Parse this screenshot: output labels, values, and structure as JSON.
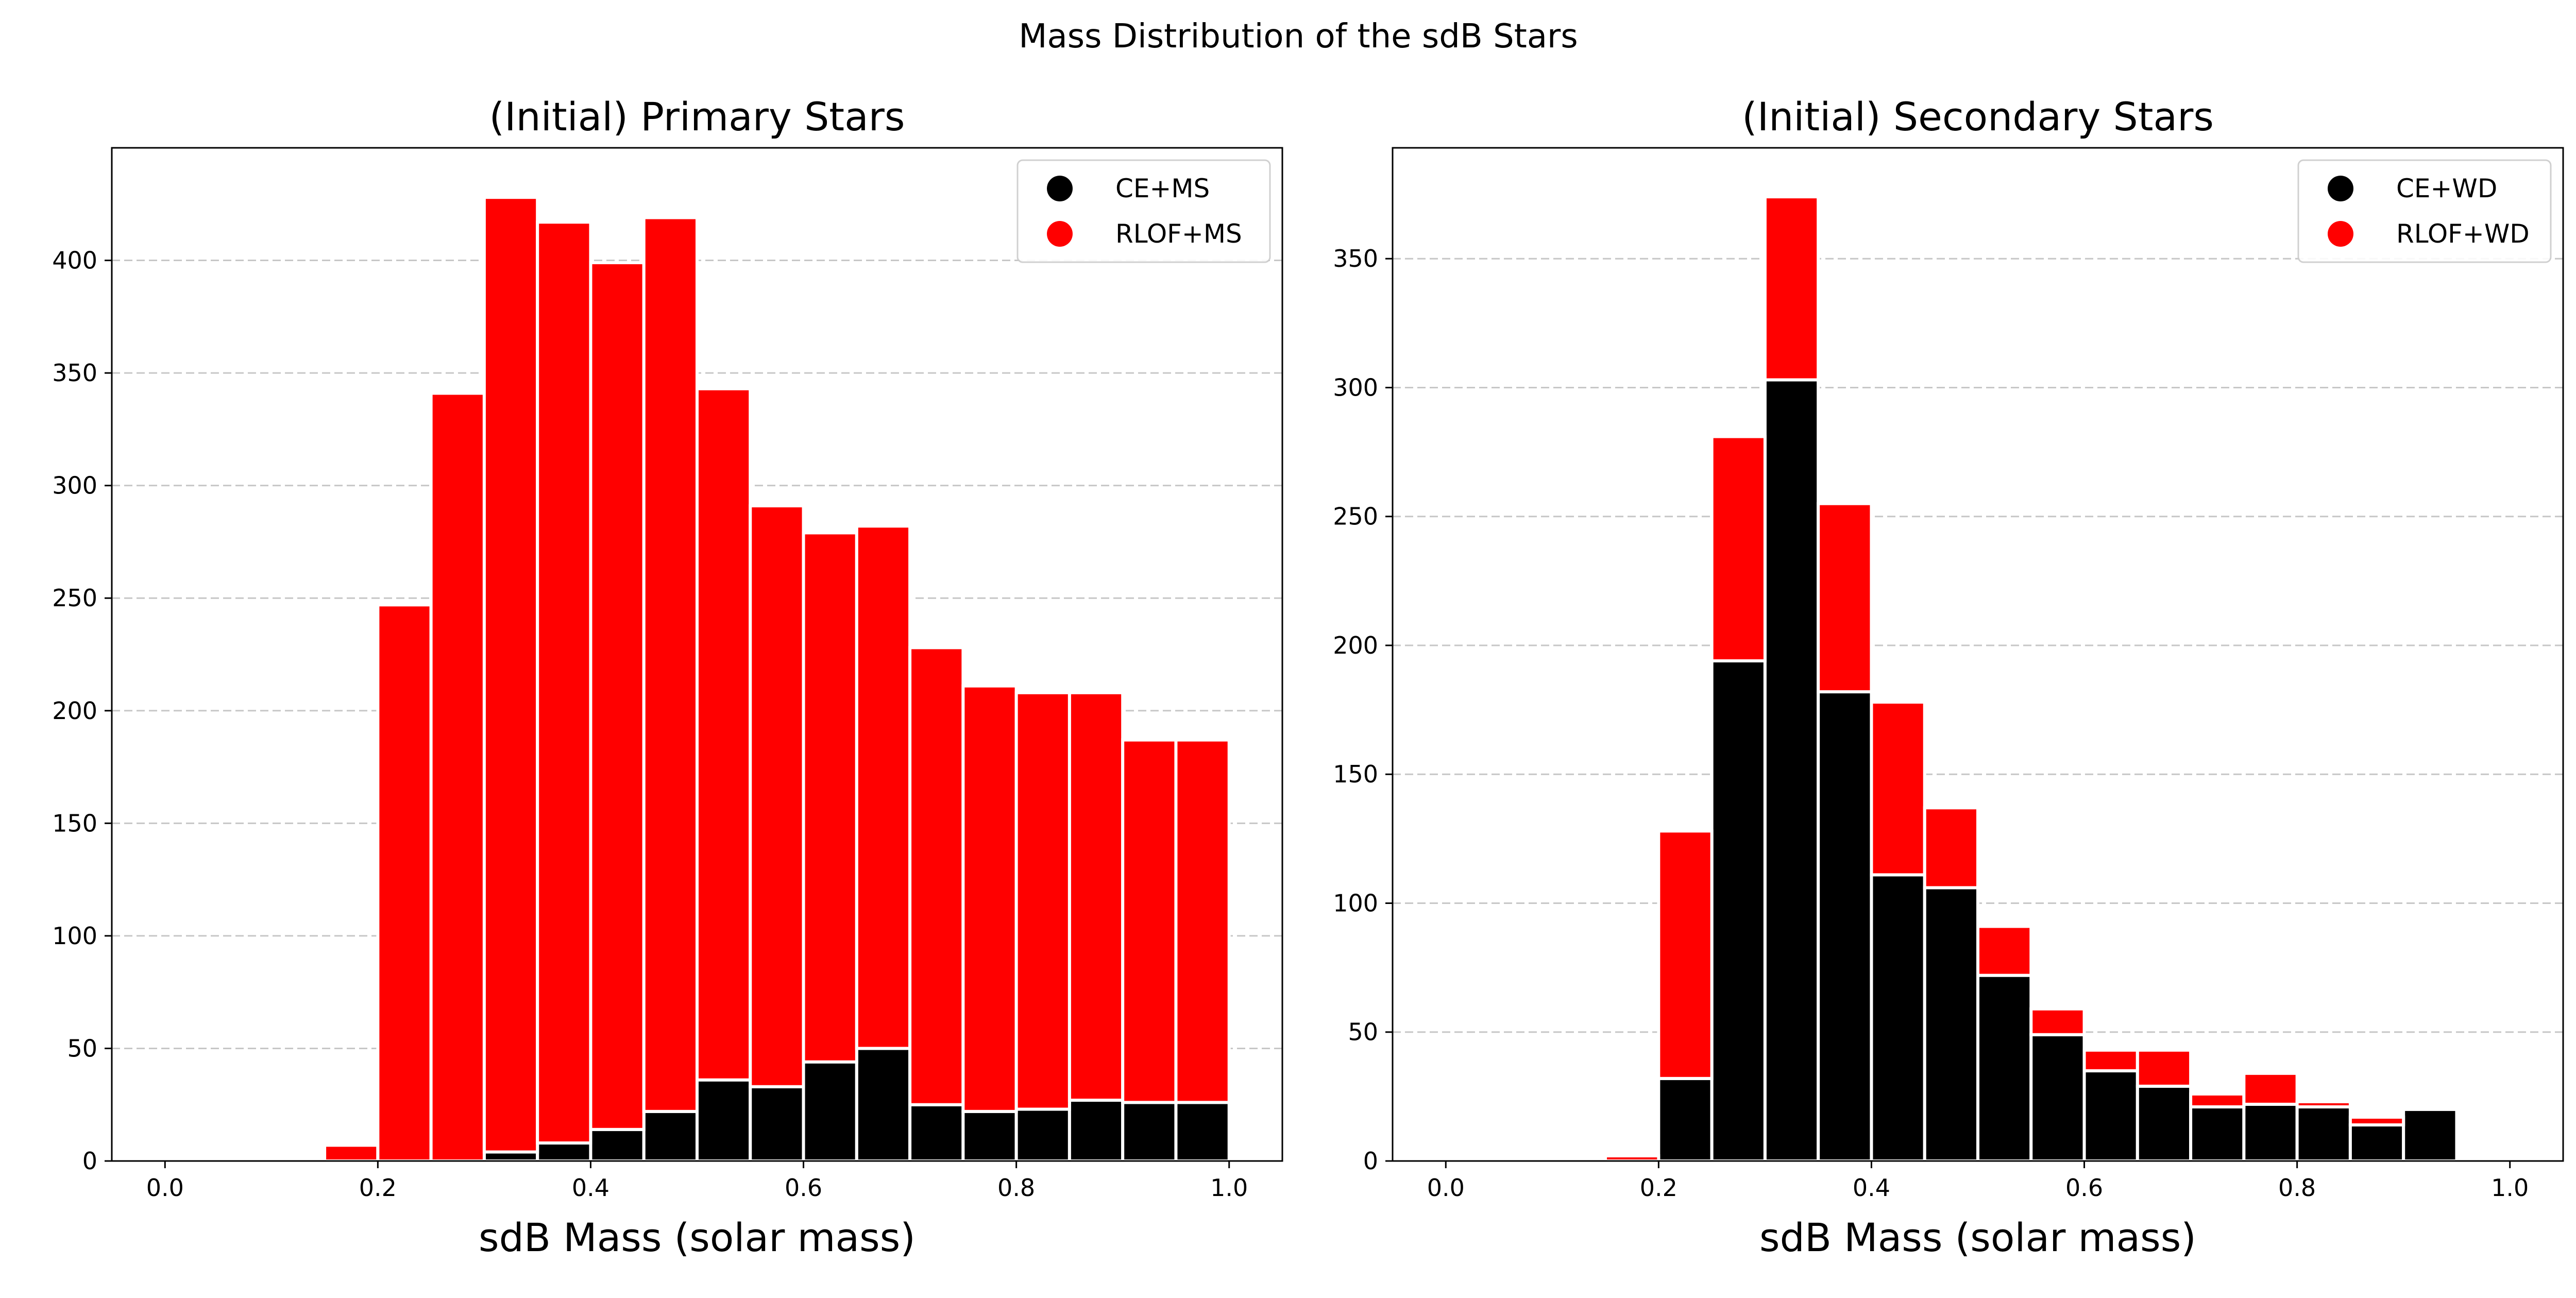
{
  "figure": {
    "suptitle": "Mass Distribution of the sdB Stars"
  },
  "colors": {
    "primary_series": "#000000",
    "secondary_series": "#ff0000",
    "bar_edge": "#ffffff",
    "grid": "#b0b0b0",
    "axes": "#000000"
  },
  "chart_data": [
    {
      "type": "bar",
      "stacked": true,
      "title": "(Initial) Primary Stars",
      "xlabel": "sdB Mass (solar mass)",
      "ylabel": "",
      "bin_width": 0.05,
      "x": [
        0.025,
        0.075,
        0.125,
        0.175,
        0.225,
        0.275,
        0.325,
        0.375,
        0.425,
        0.475,
        0.525,
        0.575,
        0.625,
        0.675,
        0.725,
        0.775,
        0.825,
        0.875,
        0.925,
        0.975
      ],
      "series": [
        {
          "name": "CE+MS",
          "color": "#000000",
          "values": [
            0,
            0,
            0,
            0,
            0,
            0,
            4,
            8,
            14,
            22,
            36,
            33,
            44,
            50,
            25,
            22,
            23,
            27,
            26,
            26
          ]
        },
        {
          "name": "RLOF+MS",
          "color": "#ff0000",
          "values": [
            0,
            0,
            0,
            7,
            247,
            341,
            424,
            409,
            385,
            397,
            307,
            258,
            235,
            232,
            203,
            189,
            185,
            181,
            161,
            161
          ]
        }
      ],
      "xlim": [
        -0.05,
        1.05
      ],
      "ylim": [
        0,
        450
      ],
      "xticks": [
        0.0,
        0.2,
        0.4,
        0.6,
        0.8,
        1.0
      ],
      "xtick_labels": [
        "0.0",
        "0.2",
        "0.4",
        "0.6",
        "0.8",
        "1.0"
      ],
      "yticks": [
        0,
        50,
        100,
        150,
        200,
        250,
        300,
        350,
        400
      ],
      "ytick_labels": [
        "0",
        "50",
        "100",
        "150",
        "200",
        "250",
        "300",
        "350",
        "400"
      ],
      "grid": "y-dashed",
      "legend": {
        "placement": "top-right",
        "entries": [
          "CE+MS",
          "RLOF+MS"
        ]
      }
    },
    {
      "type": "bar",
      "stacked": true,
      "title": "(Initial) Secondary Stars",
      "xlabel": "sdB Mass (solar mass)",
      "ylabel": "",
      "bin_width": 0.05,
      "x": [
        0.025,
        0.075,
        0.125,
        0.175,
        0.225,
        0.275,
        0.325,
        0.375,
        0.425,
        0.475,
        0.525,
        0.575,
        0.625,
        0.675,
        0.725,
        0.775,
        0.825,
        0.875,
        0.925,
        0.975
      ],
      "series": [
        {
          "name": "CE+WD",
          "color": "#000000",
          "values": [
            0,
            0,
            0,
            0,
            32,
            194,
            303,
            182,
            111,
            106,
            72,
            49,
            35,
            29,
            21,
            22,
            21,
            14,
            20,
            0
          ]
        },
        {
          "name": "RLOF+WD",
          "color": "#ff0000",
          "values": [
            0,
            0,
            0,
            2,
            96,
            87,
            71,
            73,
            67,
            31,
            19,
            10,
            8,
            14,
            5,
            12,
            2,
            3,
            0,
            0
          ]
        }
      ],
      "xlim": [
        -0.05,
        1.05
      ],
      "ylim": [
        0,
        393
      ],
      "xticks": [
        0.0,
        0.2,
        0.4,
        0.6,
        0.8,
        1.0
      ],
      "xtick_labels": [
        "0.0",
        "0.2",
        "0.4",
        "0.6",
        "0.8",
        "1.0"
      ],
      "yticks": [
        0,
        50,
        100,
        150,
        200,
        250,
        300,
        350
      ],
      "ytick_labels": [
        "0",
        "50",
        "100",
        "150",
        "200",
        "250",
        "300",
        "350"
      ],
      "grid": "y-dashed",
      "legend": {
        "placement": "top-right",
        "entries": [
          "CE+WD",
          "RLOF+WD"
        ]
      }
    }
  ]
}
